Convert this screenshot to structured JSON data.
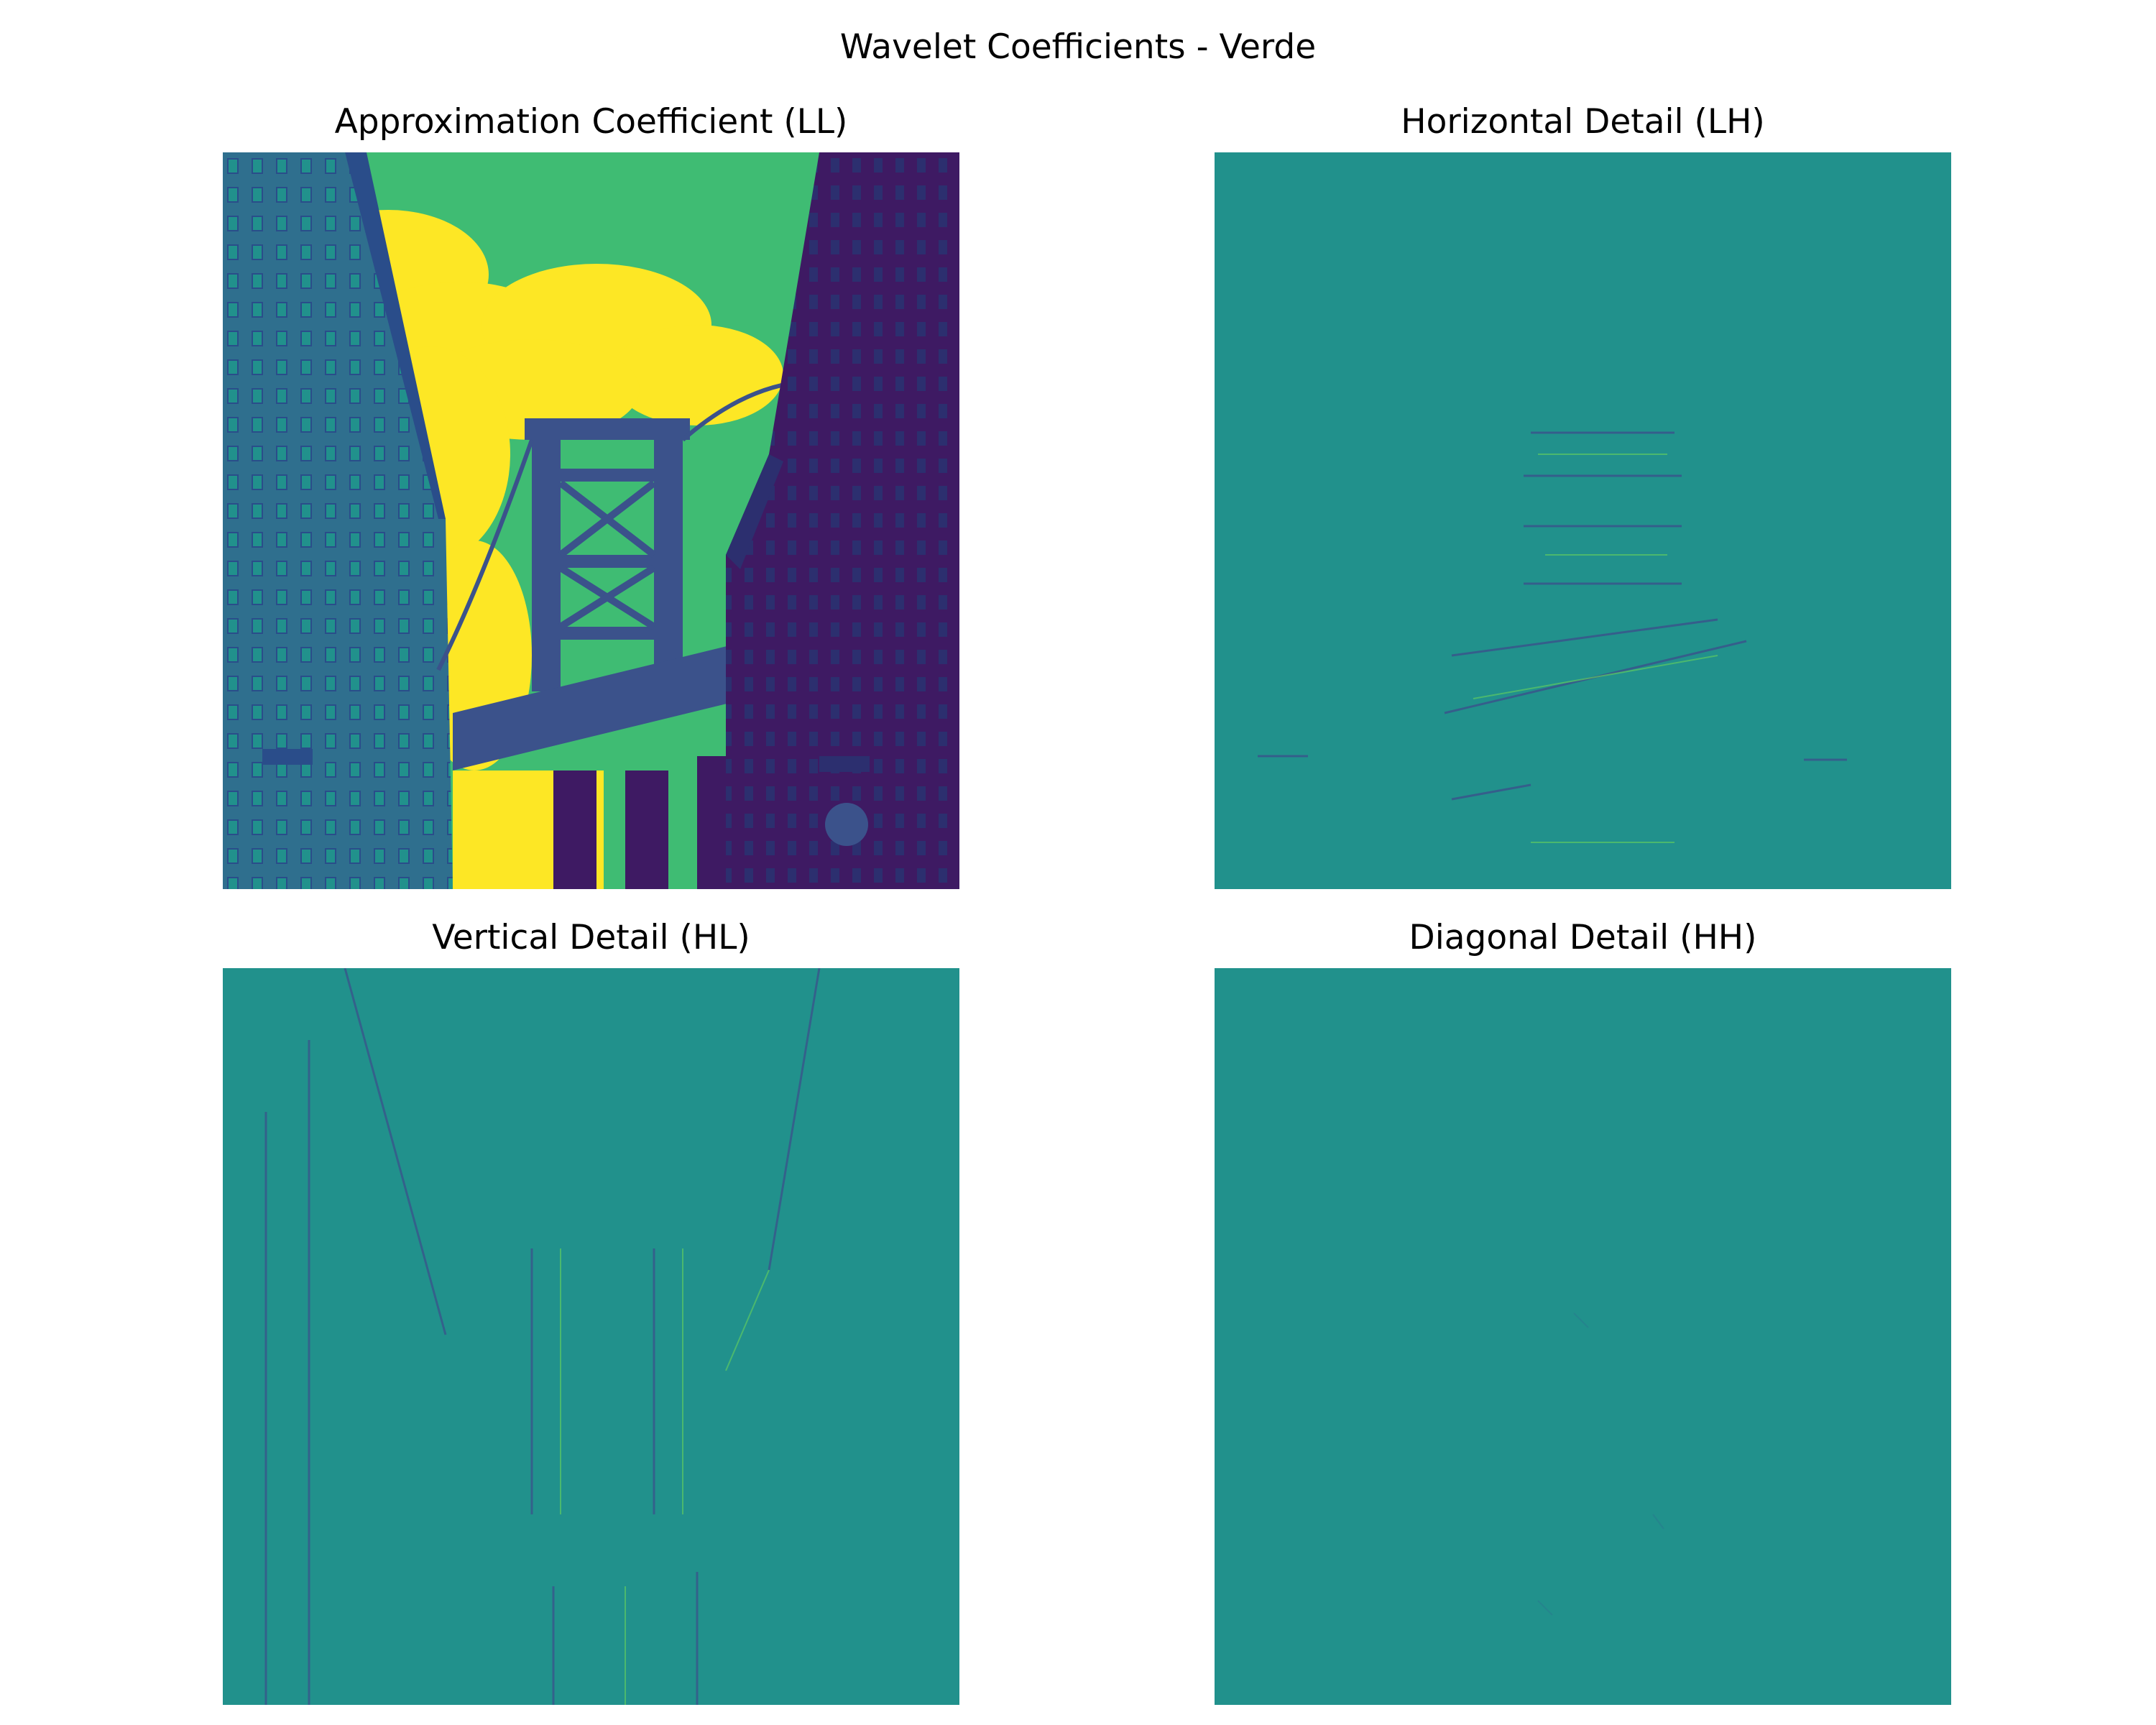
{
  "figure": {
    "title": "Wavelet Coefficients - Verde",
    "colormap": "viridis",
    "colors": {
      "viridis_low": "#440154",
      "viridis_mid": "#21918c",
      "viridis_high": "#fde725",
      "viridis_green": "#3fbc73",
      "viridis_blue": "#3b528b"
    }
  },
  "panels": [
    {
      "title": "Approximation Coefficient (LL)",
      "kind": "image"
    },
    {
      "title": "Horizontal Detail (LH)",
      "kind": "detail"
    },
    {
      "title": "Vertical Detail (HL)",
      "kind": "detail"
    },
    {
      "title": "Diagonal Detail (HH)",
      "kind": "detail"
    }
  ]
}
